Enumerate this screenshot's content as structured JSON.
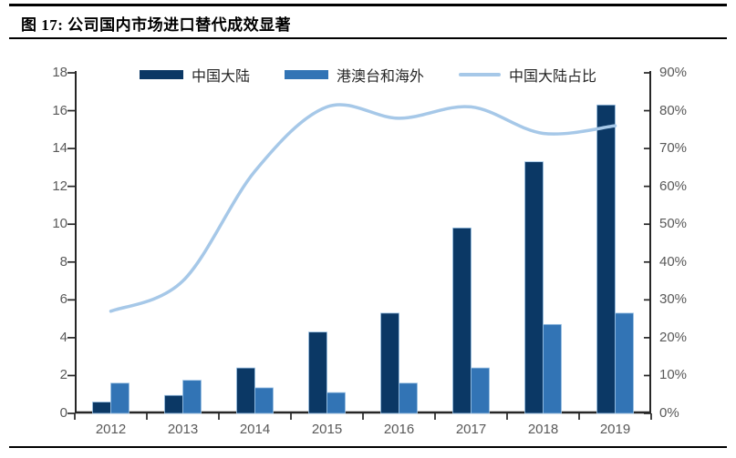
{
  "header": {
    "title": "图 17:  公司国内市场进口替代成效显著"
  },
  "chart_data": {
    "type": "bar+line",
    "subtype": "grouped bars on primary axis with smooth line on secondary percentage axis",
    "title": "公司国内市场进口替代成效显著",
    "categories": [
      "2012",
      "2013",
      "2014",
      "2015",
      "2016",
      "2017",
      "2018",
      "2019"
    ],
    "series": [
      {
        "name": "中国大陆",
        "key": "mainland-china",
        "type": "bar",
        "axis": "left",
        "color": "#0B3865",
        "values": [
          0.6,
          0.95,
          2.4,
          4.3,
          5.3,
          9.8,
          13.3,
          16.3
        ]
      },
      {
        "name": "港澳台和海外",
        "key": "hk-mo-tw-overseas",
        "type": "bar",
        "axis": "left",
        "color": "#3274B5",
        "values": [
          1.6,
          1.75,
          1.35,
          1.1,
          1.6,
          2.4,
          4.7,
          5.3
        ]
      },
      {
        "name": "中国大陆占比",
        "key": "mainland-share-pct",
        "type": "line",
        "axis": "right",
        "color": "#A6C8E8",
        "values": [
          27,
          35,
          64,
          81,
          78,
          81,
          74,
          76
        ]
      }
    ],
    "left_axis": {
      "min": 0,
      "max": 18,
      "step": 2,
      "tick_labels": [
        "0",
        "2",
        "4",
        "6",
        "8",
        "10",
        "12",
        "14",
        "16",
        "18"
      ]
    },
    "right_axis": {
      "min": 0,
      "max": 90,
      "step": 10,
      "unit": "%",
      "tick_labels": [
        "0%",
        "10%",
        "20%",
        "30%",
        "40%",
        "50%",
        "60%",
        "70%",
        "80%",
        "90%"
      ]
    },
    "legend_position": "top",
    "grid": false,
    "axis_color": "#262626",
    "label_color": "#595959",
    "background": "#FFFFFF"
  }
}
